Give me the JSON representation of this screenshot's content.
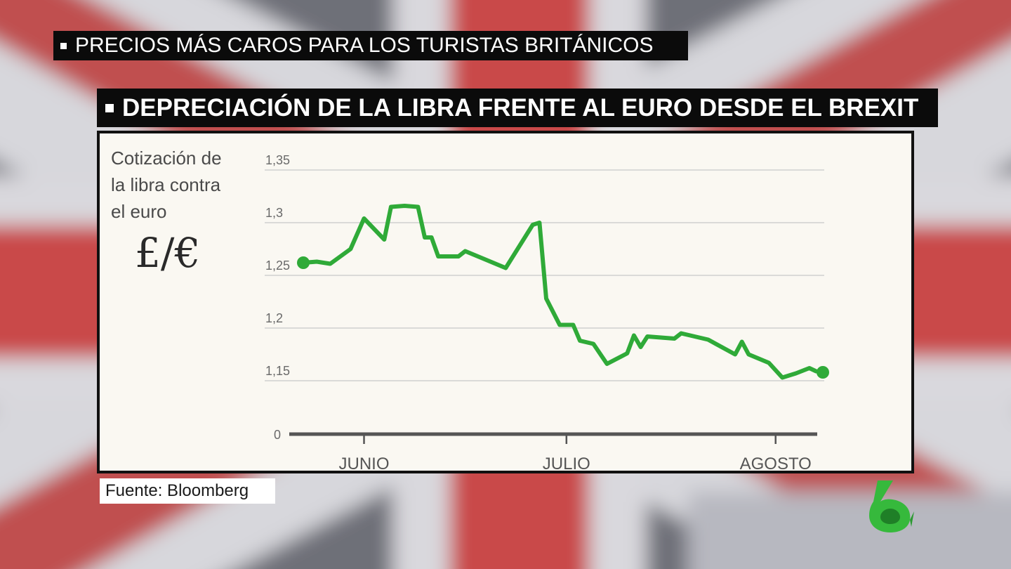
{
  "banners": {
    "top": "PRECIOS MÁS CAROS PARA LOS TURISTAS BRITÁNICOS",
    "main": "DEPRECIACIÓN DE LA LIBRA FRENTE AL EURO DESDE EL BREXIT"
  },
  "source": "Fuente: Bloomberg",
  "colors": {
    "line": "#2faa38",
    "panel": "#faf8f2",
    "grid": "#cfcfcf",
    "axis": "#555555",
    "logo": "#36b93c"
  },
  "chart_data": {
    "type": "line",
    "ylabel": "Cotización de\nla libra contra\nel euro",
    "unit_symbol": "£/€",
    "y_ticks": [
      {
        "value": 1.35,
        "label": "1,35"
      },
      {
        "value": 1.3,
        "label": "1,3"
      },
      {
        "value": 1.25,
        "label": "1,25"
      },
      {
        "value": 1.2,
        "label": "1,2"
      },
      {
        "value": 1.15,
        "label": "1,15"
      }
    ],
    "y_axis_zero_label": "0",
    "ylim": [
      1.1,
      1.36
    ],
    "x_ticks": [
      {
        "date": "2016-06-01",
        "label": "JUNIO"
      },
      {
        "date": "2016-07-01",
        "label": "JULIO"
      },
      {
        "date": "2016-08-01",
        "label": "AGOSTO"
      }
    ],
    "xlim": [
      "2016-05-23",
      "2016-08-08"
    ],
    "grid": true,
    "series": [
      {
        "points": [
          [
            "2016-05-23",
            1.262
          ],
          [
            "2016-05-25",
            1.263
          ],
          [
            "2016-05-27",
            1.261
          ],
          [
            "2016-05-30",
            1.275
          ],
          [
            "2016-06-01",
            1.304
          ],
          [
            "2016-06-04",
            1.284
          ],
          [
            "2016-06-05",
            1.315
          ],
          [
            "2016-06-07",
            1.316
          ],
          [
            "2016-06-09",
            1.315
          ],
          [
            "2016-06-10",
            1.286
          ],
          [
            "2016-06-11",
            1.286
          ],
          [
            "2016-06-12",
            1.268
          ],
          [
            "2016-06-15",
            1.268
          ],
          [
            "2016-06-16",
            1.273
          ],
          [
            "2016-06-19",
            1.265
          ],
          [
            "2016-06-22",
            1.257
          ],
          [
            "2016-06-26",
            1.298
          ],
          [
            "2016-06-27",
            1.3
          ],
          [
            "2016-06-28",
            1.228
          ],
          [
            "2016-06-30",
            1.203
          ],
          [
            "2016-07-02",
            1.203
          ],
          [
            "2016-07-03",
            1.188
          ],
          [
            "2016-07-05",
            1.185
          ],
          [
            "2016-07-07",
            1.166
          ],
          [
            "2016-07-10",
            1.176
          ],
          [
            "2016-07-11",
            1.193
          ],
          [
            "2016-07-12",
            1.182
          ],
          [
            "2016-07-13",
            1.192
          ],
          [
            "2016-07-17",
            1.19
          ],
          [
            "2016-07-18",
            1.195
          ],
          [
            "2016-07-22",
            1.189
          ],
          [
            "2016-07-26",
            1.175
          ],
          [
            "2016-07-27",
            1.187
          ],
          [
            "2016-07-28",
            1.175
          ],
          [
            "2016-07-31",
            1.167
          ],
          [
            "2016-08-02",
            1.153
          ],
          [
            "2016-08-04",
            1.157
          ],
          [
            "2016-08-06",
            1.162
          ],
          [
            "2016-08-07",
            1.159
          ]
        ]
      }
    ],
    "markers": [
      {
        "date": "2016-05-23",
        "value": 1.262
      },
      {
        "date": "2016-08-08",
        "value": 1.158
      }
    ]
  }
}
